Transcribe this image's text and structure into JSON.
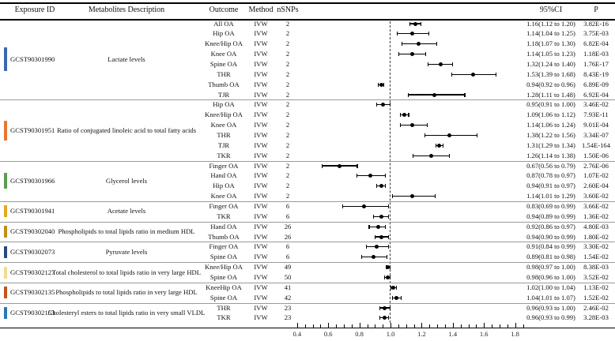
{
  "headers": {
    "exposure": "Exposure ID",
    "metabolites": "Metabolites Description",
    "outcome": "Outcome",
    "method": "Method",
    "nsnps": "nSNPs",
    "ci": "95%CI",
    "p": "P"
  },
  "chart_data": {
    "type": "scatter",
    "subtype": "forest-plot",
    "xlim": [
      0.38,
      1.88
    ],
    "reference_line": 1.0,
    "axis": {
      "major_ticks": [
        0.4,
        0.6,
        0.8,
        1.0,
        1.2,
        1.4,
        1.6,
        1.8
      ],
      "major_labels": [
        "0.4",
        "0.6",
        "0.8",
        "1.0",
        "1.2",
        "1.4",
        "1.6",
        "1.8"
      ],
      "minor_step": 0.05
    },
    "groups": [
      {
        "id": "GCST90301990",
        "metabolite": "Lactate levels",
        "color": "#3A67B0",
        "rows": [
          {
            "outcome": "All OA",
            "method": "IVW",
            "nsnps": "2",
            "est": 1.16,
            "lo": 1.12,
            "hi": 1.2,
            "ci": "1.16(1.12 to 1.20)",
            "p": "3.82E-16"
          },
          {
            "outcome": "Hip OA",
            "method": "IVW",
            "nsnps": "2",
            "est": 1.14,
            "lo": 1.04,
            "hi": 1.25,
            "ci": "1.14(1.04 to 1.25)",
            "p": "3.75E-03"
          },
          {
            "outcome": "Knee/Hip OA",
            "method": "IVW",
            "nsnps": "2",
            "est": 1.18,
            "lo": 1.07,
            "hi": 1.3,
            "ci": "1.18(1.07 to 1.30)",
            "p": "6.82E-04"
          },
          {
            "outcome": "Knee OA",
            "method": "IVW",
            "nsnps": "2",
            "est": 1.14,
            "lo": 1.05,
            "hi": 1.23,
            "ci": "1.14(1.05 to 1.23)",
            "p": "1.18E-03"
          },
          {
            "outcome": "Spine OA",
            "method": "IVW",
            "nsnps": "2",
            "est": 1.32,
            "lo": 1.24,
            "hi": 1.4,
            "ci": "1.32(1.24 to 1.40)",
            "p": "1.76E-17"
          },
          {
            "outcome": "THR",
            "method": "IVW",
            "nsnps": "2",
            "est": 1.53,
            "lo": 1.39,
            "hi": 1.68,
            "ci": "1.53(1.39 to 1.68)",
            "p": "8.43E-19"
          },
          {
            "outcome": "Thumb OA",
            "method": "IVW",
            "nsnps": "2",
            "est": 0.94,
            "lo": 0.92,
            "hi": 0.96,
            "ci": "0.94(0.92 to 0.96)",
            "p": "6.89E-09"
          },
          {
            "outcome": "TJR",
            "method": "IVW",
            "nsnps": "2",
            "est": 1.28,
            "lo": 1.11,
            "hi": 1.48,
            "ci": "1.28(1.11 to 1.48)",
            "p": "6.92E-04"
          }
        ]
      },
      {
        "id": "GCST90301951",
        "metabolite": "Ratio of conjugated linoleic acid to total fatty acids",
        "color": "#E4792F",
        "rows": [
          {
            "outcome": "Hip OA",
            "method": "IVW",
            "nsnps": "2",
            "est": 0.95,
            "lo": 0.91,
            "hi": 1.0,
            "ci": "0.95(0.91 to 1.00)",
            "p": "3.46E-02"
          },
          {
            "outcome": "Knee/Hip OA",
            "method": "IVW",
            "nsnps": "2",
            "est": 1.09,
            "lo": 1.06,
            "hi": 1.12,
            "ci": "1.09(1.06 to 1.12)",
            "p": "7.93E-11"
          },
          {
            "outcome": "Knee OA",
            "method": "IVW",
            "nsnps": "2",
            "est": 1.14,
            "lo": 1.06,
            "hi": 1.24,
            "ci": "1.14(1.06 to 1.24)",
            "p": "9.01E-04"
          },
          {
            "outcome": "THR",
            "method": "IVW",
            "nsnps": "2",
            "est": 1.38,
            "lo": 1.22,
            "hi": 1.56,
            "ci": "1.38(1.22 to 1.56)",
            "p": "3.34E-07"
          },
          {
            "outcome": "TJR",
            "method": "IVW",
            "nsnps": "2",
            "est": 1.31,
            "lo": 1.29,
            "hi": 1.34,
            "ci": "1.31(1.29 to 1.34)",
            "p": "1.54E-164"
          },
          {
            "outcome": "TKR",
            "method": "IVW",
            "nsnps": "2",
            "est": 1.26,
            "lo": 1.14,
            "hi": 1.38,
            "ci": "1.26(1.14 to 1.38)",
            "p": "1.50E-06"
          }
        ]
      },
      {
        "id": "GCST90301966",
        "metabolite": "Glycerol levels",
        "color": "#57A04C",
        "rows": [
          {
            "outcome": "Finger OA",
            "method": "IVW",
            "nsnps": "2",
            "est": 0.67,
            "lo": 0.56,
            "hi": 0.79,
            "ci": "0.67(0.56 to 0.79)",
            "p": "2.76E-06"
          },
          {
            "outcome": "Hand OA",
            "method": "IVW",
            "nsnps": "2",
            "est": 0.87,
            "lo": 0.78,
            "hi": 0.97,
            "ci": "0.87(0.78 to 0.97)",
            "p": "1.07E-02"
          },
          {
            "outcome": "Hip OA",
            "method": "IVW",
            "nsnps": "2",
            "est": 0.94,
            "lo": 0.91,
            "hi": 0.97,
            "ci": "0.94(0.91 to 0.97)",
            "p": "2.60E-04"
          },
          {
            "outcome": "Knee OA",
            "method": "IVW",
            "nsnps": "2",
            "est": 1.14,
            "lo": 1.01,
            "hi": 1.29,
            "ci": "1.14(1.01 to 1.29)",
            "p": "3.60E-02"
          }
        ]
      },
      {
        "id": "GCST90301941",
        "metabolite": "Acetate levels",
        "color": "#E2A921",
        "rows": [
          {
            "outcome": "Finger OA",
            "method": "IVW",
            "nsnps": "6",
            "est": 0.83,
            "lo": 0.69,
            "hi": 0.99,
            "ci": "0.83(0.69 to 0.99)",
            "p": "3.66E-02"
          },
          {
            "outcome": "TKR",
            "method": "IVW",
            "nsnps": "6",
            "est": 0.94,
            "lo": 0.89,
            "hi": 0.99,
            "ci": "0.94(0.89 to 0.99)",
            "p": "1.36E-02"
          }
        ]
      },
      {
        "id": "GCST90302040",
        "metabolite": "Phospholipids to total lipids ratio in medium HDL",
        "color": "#C08E12",
        "rows": [
          {
            "outcome": "Hand OA",
            "method": "IVW",
            "nsnps": "26",
            "est": 0.92,
            "lo": 0.86,
            "hi": 0.97,
            "ci": "0.92(0.86 to 0.97)",
            "p": "4.80E-03"
          },
          {
            "outcome": "Thumb OA",
            "method": "IVW",
            "nsnps": "26",
            "est": 0.94,
            "lo": 0.9,
            "hi": 0.99,
            "ci": "0.94(0.90 to 0.99)",
            "p": "1.80E-02"
          }
        ]
      },
      {
        "id": "GCST90302073",
        "metabolite": "Pyruvate levels",
        "color": "#27497F",
        "rows": [
          {
            "outcome": "Finger OA",
            "method": "IVW",
            "nsnps": "6",
            "est": 0.91,
            "lo": 0.84,
            "hi": 0.99,
            "ci": "0.91(0.84 to 0.99)",
            "p": "3.30E-02"
          },
          {
            "outcome": "Spine OA",
            "method": "IVW",
            "nsnps": "6",
            "est": 0.89,
            "lo": 0.81,
            "hi": 0.98,
            "ci": "0.89(0.81 to 0.98)",
            "p": "1.54E-02"
          }
        ]
      },
      {
        "id": "GCST90302127",
        "metabolite": "Total cholesterol to total lipids ratio in very large HDL",
        "color": "#F3DC8F",
        "rows": [
          {
            "outcome": "Knee/Hip OA",
            "method": "IVW",
            "nsnps": "49",
            "est": 0.98,
            "lo": 0.97,
            "hi": 1.0,
            "ci": "0.98(0.97 to 1.00)",
            "p": "8.38E-03"
          },
          {
            "outcome": "Spine OA",
            "method": "IVW",
            "nsnps": "50",
            "est": 0.98,
            "lo": 0.96,
            "hi": 1.0,
            "ci": "0.98(0.96 to 1.00)",
            "p": "3.52E-02"
          }
        ]
      },
      {
        "id": "GCST90302135",
        "metabolite": "Phospholipids to total lipids ratio in very large HDL",
        "color": "#C1551B",
        "rows": [
          {
            "outcome": "KneeHip OA",
            "method": "IVW",
            "nsnps": "41",
            "est": 1.02,
            "lo": 1.0,
            "hi": 1.04,
            "ci": "1.02(1.00 to 1.04)",
            "p": "1.13E-02"
          },
          {
            "outcome": "Spine OA",
            "method": "IVW",
            "nsnps": "42",
            "est": 1.04,
            "lo": 1.01,
            "hi": 1.07,
            "ci": "1.04(1.01 to 1.07)",
            "p": "1.52E-02"
          }
        ]
      },
      {
        "id": "GCST90302153",
        "metabolite": "Cholesteryl esters to total lipids ratio in very small VLDL",
        "color": "#2F74B5",
        "rows": [
          {
            "outcome": "THR",
            "method": "IVW",
            "nsnps": "23",
            "est": 0.96,
            "lo": 0.93,
            "hi": 1.0,
            "ci": "0.96(0.93 to 1.00)",
            "p": "2.46E-02"
          },
          {
            "outcome": "TKR",
            "method": "IVW",
            "nsnps": "23",
            "est": 0.96,
            "lo": 0.93,
            "hi": 0.99,
            "ci": "0.96(0.93 to 0.99)",
            "p": "3.28E-03"
          }
        ]
      }
    ]
  }
}
